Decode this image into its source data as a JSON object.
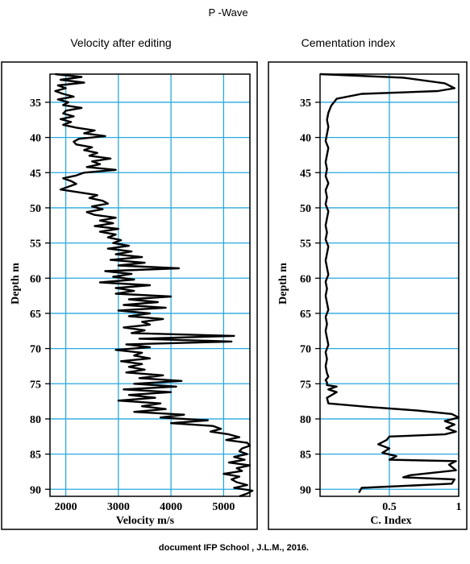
{
  "figure": {
    "title": "P -Wave",
    "footer": "document IFP School , J.L.M., 2016."
  },
  "chart_data": [
    {
      "type": "line",
      "title": "Velocity after editing",
      "xlabel": "Velocity m/s",
      "ylabel": "Depth m",
      "xlim": [
        1700,
        5500
      ],
      "ylim": [
        31,
        91
      ],
      "y_inverted": true,
      "grid": true,
      "grid_color": "#29a9df",
      "line_color": "#000000",
      "x_ticks": [
        "2000",
        "3000",
        "4000",
        "5000"
      ],
      "y_ticks": [
        "35",
        "40",
        "45",
        "50",
        "55",
        "60",
        "65",
        "70",
        "75",
        "80",
        "85",
        "90"
      ],
      "series": [
        {
          "x": [
            1800,
            2300,
            1900,
            2350,
            1850,
            2000,
            1800,
            1950,
            2150,
            1850,
            2050,
            1950,
            2300,
            2000,
            1950,
            2150,
            1900,
            2100,
            1950,
            2200,
            2550,
            2350,
            2750,
            2250,
            2150,
            2200,
            2500,
            2350,
            2600,
            2450,
            2850,
            2500,
            2650,
            2400,
            2950,
            2350,
            2200,
            1950,
            2100,
            2200,
            2050,
            1900,
            2250,
            2600,
            2450,
            2700,
            2800,
            2500,
            2700,
            2400,
            2550,
            2950,
            2650,
            2900,
            2550,
            3000,
            2650,
            2950,
            2800,
            3050,
            2900,
            3200,
            2800,
            3250,
            2950,
            3450,
            2850,
            3500,
            3000,
            4150,
            2750,
            3250,
            2900,
            3300,
            2650,
            3600,
            2950,
            3300,
            2950,
            4000,
            3200,
            3750,
            3100,
            3900,
            3000,
            3600,
            3200,
            3850,
            3450,
            3600,
            3100,
            3500,
            3250,
            5200,
            3400,
            5150,
            3150,
            3600,
            2950,
            3450,
            3300,
            3600,
            3050,
            3450,
            3200,
            3500,
            3150,
            3850,
            3400,
            4200,
            3300,
            4100,
            3100,
            4000,
            3200,
            3700,
            3000,
            3800,
            3450,
            3900,
            3300,
            4250,
            3800,
            4700,
            4000,
            4800,
            4950,
            4750,
            5100,
            5300,
            5050,
            5450,
            5500,
            5350,
            5300,
            5450,
            5200,
            5400,
            5100,
            5500,
            5250,
            5350,
            5000,
            5300,
            5150,
            5250,
            5450,
            5200,
            5550,
            5450,
            5300
          ],
          "y": [
            31.0,
            31.4,
            31.8,
            32.2,
            32.6,
            33.0,
            33.4,
            33.8,
            34.2,
            34.6,
            35.0,
            35.4,
            35.8,
            36.2,
            36.6,
            37.0,
            37.4,
            37.8,
            38.2,
            38.6,
            39.0,
            39.4,
            39.8,
            40.2,
            40.6,
            41.0,
            41.4,
            41.8,
            42.2,
            42.6,
            43.0,
            43.4,
            43.8,
            44.2,
            44.6,
            45.0,
            45.4,
            45.8,
            46.2,
            46.6,
            47.0,
            47.4,
            47.8,
            48.2,
            48.6,
            49.0,
            49.4,
            49.8,
            50.2,
            50.6,
            51.0,
            51.4,
            51.8,
            52.2,
            52.6,
            53.0,
            53.4,
            53.8,
            54.2,
            54.6,
            55.0,
            55.4,
            55.8,
            56.2,
            56.6,
            57.0,
            57.4,
            57.8,
            58.2,
            58.6,
            59.0,
            59.4,
            59.8,
            60.2,
            60.6,
            61.0,
            61.4,
            61.8,
            62.2,
            62.6,
            63.0,
            63.4,
            63.8,
            64.2,
            64.6,
            65.0,
            65.4,
            65.8,
            66.2,
            66.6,
            67.0,
            67.4,
            67.8,
            68.2,
            68.6,
            69.0,
            69.4,
            69.8,
            70.2,
            70.6,
            71.0,
            71.4,
            71.8,
            72.2,
            72.6,
            73.0,
            73.4,
            73.8,
            74.2,
            74.6,
            75.0,
            75.4,
            75.8,
            76.2,
            76.6,
            77.0,
            77.4,
            77.8,
            78.2,
            78.6,
            79.0,
            79.4,
            79.8,
            80.2,
            80.6,
            81.0,
            81.4,
            81.8,
            82.2,
            82.6,
            83.0,
            83.4,
            83.8,
            84.2,
            84.6,
            85.0,
            85.4,
            85.8,
            86.2,
            86.6,
            87.0,
            87.4,
            87.8,
            88.2,
            88.6,
            89.0,
            89.4,
            89.8,
            90.2,
            90.6,
            91.0
          ]
        }
      ]
    },
    {
      "type": "line",
      "title": "Cementation index",
      "xlabel": "C. Index",
      "ylabel": "Depth m",
      "xlim": [
        0,
        1
      ],
      "ylim": [
        31,
        91
      ],
      "y_inverted": true,
      "grid": true,
      "grid_color": "#29a9df",
      "line_color": "#000000",
      "x_ticks": [
        "0.5",
        "1"
      ],
      "y_ticks": [
        "35",
        "40",
        "45",
        "50",
        "55",
        "60",
        "65",
        "70",
        "75",
        "80",
        "85",
        "90"
      ],
      "series": [
        {
          "x": [
            0.0,
            0.6,
            0.9,
            0.97,
            0.85,
            0.3,
            0.12,
            0.08,
            0.06,
            0.05,
            0.06,
            0.05,
            0.04,
            0.06,
            0.05,
            0.04,
            0.05,
            0.04,
            0.06,
            0.04,
            0.05,
            0.04,
            0.06,
            0.05,
            0.04,
            0.05,
            0.04,
            0.06,
            0.05,
            0.04,
            0.05,
            0.06,
            0.04,
            0.05,
            0.04,
            0.05,
            0.06,
            0.04,
            0.05,
            0.04,
            0.05,
            0.06,
            0.04,
            0.05,
            0.04,
            0.05,
            0.06,
            0.04,
            0.05,
            0.05,
            0.05,
            0.12,
            0.06,
            0.12,
            0.05,
            0.06,
            0.35,
            0.7,
            0.95,
            1.0,
            0.9,
            0.97,
            0.91,
            0.98,
            0.9,
            0.5,
            0.48,
            0.42,
            0.5,
            0.45,
            0.55,
            0.5,
            0.98,
            0.93,
            0.98,
            0.65,
            0.6,
            0.97,
            0.95,
            0.3,
            0.28
          ],
          "y": [
            31.0,
            31.5,
            32.3,
            33.0,
            33.4,
            33.8,
            34.5,
            35.5,
            36.5,
            37.5,
            38.5,
            39.5,
            40.5,
            41.5,
            42.5,
            43.5,
            44.5,
            45.5,
            46.5,
            47.5,
            48.5,
            49.5,
            50.5,
            51.5,
            52.5,
            53.5,
            54.5,
            55.5,
            56.5,
            57.5,
            58.5,
            59.5,
            60.5,
            61.5,
            62.5,
            63.5,
            64.5,
            65.5,
            66.5,
            67.5,
            68.5,
            69.5,
            70.5,
            71.5,
            72.5,
            73.5,
            74.0,
            74.5,
            74.8,
            75.0,
            75.2,
            75.4,
            75.8,
            76.2,
            77.0,
            77.8,
            78.3,
            78.8,
            79.3,
            79.8,
            80.3,
            80.8,
            81.3,
            81.8,
            82.2,
            82.5,
            83.0,
            83.6,
            84.2,
            84.8,
            85.3,
            85.8,
            86.0,
            86.5,
            87.3,
            88.0,
            88.3,
            88.6,
            89.2,
            89.8,
            90.5
          ]
        }
      ]
    }
  ]
}
